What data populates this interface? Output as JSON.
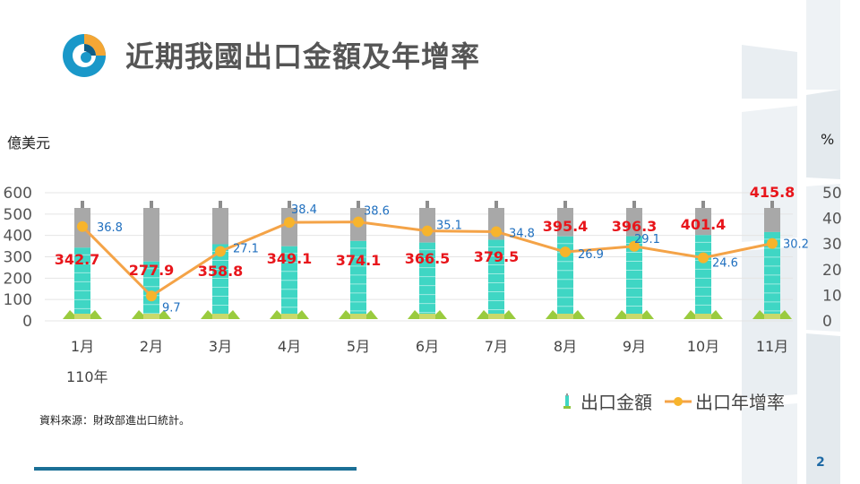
{
  "slide": {
    "title": "近期我國出口金額及年增率",
    "page_number": "2",
    "source": "資料來源：財政部進出口統計。",
    "unit_left": "億美元",
    "unit_right": "%",
    "year_label": "110年"
  },
  "colors": {
    "bar": "#3fd6c4",
    "line": "#f4a347",
    "marker": "#f7b42c",
    "value_label": "#e8151b",
    "growth_label": "#1f6fbf",
    "axis_text": "#555555",
    "grid": "#e4e4e4"
  },
  "legend": {
    "bar_label": "出口金額",
    "line_label": "出口年增率"
  },
  "chart_data": {
    "type": "bar",
    "categories": [
      "1月",
      "2月",
      "3月",
      "4月",
      "5月",
      "6月",
      "7月",
      "8月",
      "9月",
      "10月",
      "11月"
    ],
    "series": [
      {
        "name": "出口金額",
        "type": "bar",
        "axis": "left",
        "values": [
          342.7,
          277.9,
          358.8,
          349.1,
          374.1,
          366.5,
          379.5,
          395.4,
          396.3,
          401.4,
          415.8
        ]
      },
      {
        "name": "出口年增率",
        "type": "line",
        "axis": "right",
        "values": [
          36.8,
          9.7,
          27.1,
          38.4,
          38.6,
          35.1,
          34.8,
          26.9,
          29.1,
          24.6,
          30.2
        ]
      }
    ],
    "y_left": {
      "label": "億美元",
      "range": [
        0,
        600
      ],
      "ticks": [
        "0",
        "100",
        "200",
        "300",
        "400",
        "500",
        "600"
      ]
    },
    "y_right": {
      "label": "%",
      "range": [
        0,
        50
      ],
      "ticks": [
        "0",
        "10",
        "20",
        "30",
        "40",
        "50"
      ]
    },
    "value_labels": [
      "342.7",
      "277.9",
      "358.8",
      "349.1",
      "374.1",
      "366.5",
      "379.5",
      "395.4",
      "396.3",
      "401.4",
      "415.8"
    ],
    "growth_labels": [
      "36.8",
      "9.7",
      "27.1",
      "38.4",
      "38.6",
      "35.1",
      "34.8",
      "26.9",
      "29.1",
      "24.6",
      "30.2"
    ],
    "grid": true,
    "legend_position": "bottom-right"
  }
}
